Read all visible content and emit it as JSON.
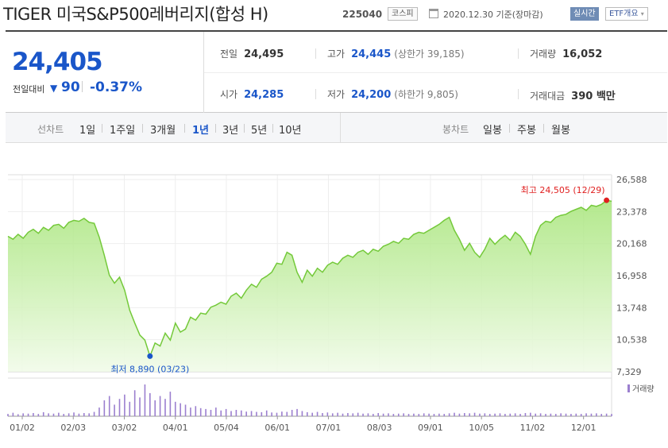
{
  "header": {
    "title": "TIGER 미국S&P500레버리지(합성 H)",
    "code": "225040",
    "market": "코스피",
    "date": "2020.12.30 기준(장마감)",
    "realtime": "실시간",
    "etf_overview": "ETF개요",
    "etf_chevron": "▾"
  },
  "quote": {
    "price": "24,405",
    "change_label": "전일대비",
    "change_arrow": "▼",
    "change_value": "90",
    "change_rate": "-0.37%",
    "stats": {
      "prev_close": {
        "label": "전일",
        "value": "24,495"
      },
      "high": {
        "label": "고가",
        "value": "24,445",
        "sub_label": "(상한가 39,185)"
      },
      "volume": {
        "label": "거래량",
        "value": "16,052"
      },
      "open": {
        "label": "시가",
        "value": "24,285"
      },
      "low": {
        "label": "저가",
        "value": "24,200",
        "sub_label": "(하한가 9,805)"
      },
      "trade_amount": {
        "label": "거래대금",
        "value": "390 백만"
      }
    }
  },
  "tabs": {
    "line_label": "선차트",
    "line_periods": [
      "1일",
      "1주일",
      "3개월",
      "1년",
      "3년",
      "5년",
      "10년"
    ],
    "active_period": "1년",
    "candle_label": "봉차트",
    "candle_periods": [
      "일봉",
      "주봉",
      "월봉"
    ]
  },
  "colors": {
    "accent_blue": "#1a56c9",
    "line_green": "#74c93a",
    "fill_green": "#c8f0a4",
    "high_marker": "#e02020",
    "low_marker": "#1a56c9",
    "volume_bar": "#9b7fcf"
  },
  "chart_data": {
    "type": "area",
    "x_ticks": [
      "01/02",
      "02/03",
      "03/02",
      "04/01",
      "05/04",
      "06/01",
      "07/01",
      "08/03",
      "09/01",
      "10/05",
      "11/02",
      "12/01"
    ],
    "y_ticks": [
      "26,588",
      "23,378",
      "20,168",
      "16,958",
      "13,748",
      "10,538",
      "7,329"
    ],
    "ylim": [
      7329,
      26588
    ],
    "high_annotation": "최고 24,505 (12/29)",
    "low_annotation": "최저 8,890 (03/23)",
    "volume_legend": "거래량",
    "grid": true,
    "series": [
      {
        "values": [
          20900,
          20600,
          21100,
          20700,
          21300,
          21600,
          21200,
          21800,
          21500,
          22000,
          22100,
          21700,
          22300,
          22500,
          22400,
          22700,
          22300,
          22200,
          20800,
          19000,
          17000,
          16200,
          16800,
          15500,
          13500,
          12200,
          11000,
          10500,
          8890,
          10200,
          9900,
          11200,
          10500,
          12200,
          11300,
          11600,
          12800,
          12500,
          13200,
          13100,
          13800,
          14000,
          14300,
          14100,
          14900,
          15200,
          14700,
          15500,
          16100,
          15800,
          16600,
          16900,
          17300,
          18200,
          18100,
          19300,
          19000,
          17300,
          16300,
          17500,
          16900,
          17700,
          17300,
          18000,
          18300,
          18100,
          18700,
          19000,
          18800,
          19300,
          19500,
          19100,
          19600,
          19400,
          19900,
          20100,
          20400,
          20200,
          20700,
          20600,
          21100,
          21300,
          21200,
          21500,
          21800,
          22100,
          22500,
          22800,
          21500,
          20600,
          19500,
          20200,
          19300,
          18800,
          19600,
          20700,
          20100,
          20600,
          21000,
          20500,
          21300,
          20900,
          20100,
          19100,
          20900,
          22000,
          22400,
          22300,
          22800,
          23000,
          23100,
          23400,
          23600,
          23800,
          23500,
          24000,
          23900,
          24100,
          24505,
          24405
        ]
      }
    ],
    "volume": [
      8,
      12,
      7,
      10,
      9,
      11,
      8,
      14,
      10,
      9,
      12,
      8,
      10,
      13,
      9,
      11,
      10,
      15,
      30,
      55,
      70,
      40,
      60,
      75,
      50,
      90,
      65,
      110,
      80,
      55,
      70,
      60,
      85,
      50,
      45,
      40,
      30,
      35,
      28,
      25,
      22,
      30,
      20,
      25,
      18,
      22,
      20,
      16,
      18,
      15,
      14,
      20,
      13,
      12,
      16,
      15,
      22,
      25,
      18,
      14,
      12,
      15,
      11,
      13,
      10,
      12,
      9,
      11,
      10,
      12,
      9,
      10,
      8,
      11,
      9,
      10,
      8,
      9,
      10,
      8,
      9,
      8,
      10,
      9,
      8,
      9,
      8,
      10,
      12,
      9,
      11,
      10,
      12,
      9,
      10,
      8,
      9,
      10,
      8,
      9,
      10,
      8,
      11,
      12,
      9,
      10,
      8,
      9,
      8,
      10,
      9,
      8,
      9,
      8,
      10,
      9,
      10,
      8,
      9,
      8
    ]
  }
}
